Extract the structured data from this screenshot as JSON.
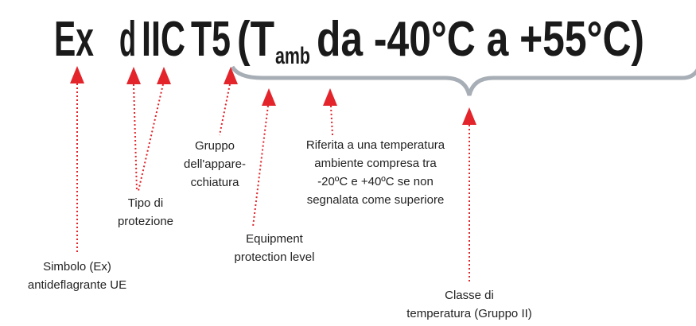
{
  "heading": {
    "parts": [
      "Ex",
      "d",
      "IIC",
      "T5",
      "(T",
      "amb",
      "da -40°C a +55°C)"
    ]
  },
  "labels": [
    {
      "lines": [
        "Simbolo (Ex)",
        "antideflagrante UE"
      ]
    },
    {
      "lines": [
        "Tipo di",
        "protezione"
      ]
    },
    {
      "lines": [
        "Gruppo",
        "dell'appare-",
        "cchiatura"
      ]
    },
    {
      "lines": [
        "Equipment",
        "protection level"
      ]
    },
    {
      "lines": [
        "Riferita a una temperatura",
        "ambiente compresa tra",
        "-20ºC e +40ºC se non",
        "segnalata come superiore"
      ]
    },
    {
      "lines": [
        "Classe di",
        "temperatura (Gruppo II)"
      ]
    }
  ]
}
